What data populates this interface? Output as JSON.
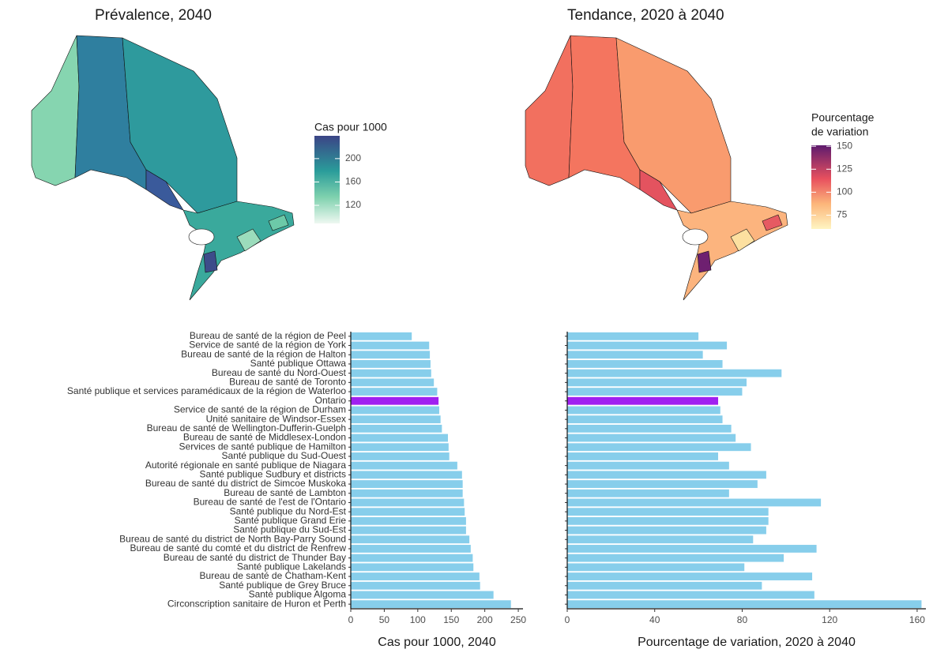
{
  "chart_data": [
    {
      "type": "map",
      "title": "Prévalence, 2040",
      "legend": {
        "title_lines": [
          "Cas pour 1000"
        ],
        "lim": [
          89,
          239
        ],
        "ticks": [
          120,
          160,
          200
        ]
      }
    },
    {
      "type": "map",
      "title": "Tendance, 2020 à 2040",
      "legend": {
        "title_lines": [
          "Pourcentage",
          "de variation"
        ],
        "lim": [
          60,
          151
        ],
        "ticks": [
          75,
          100,
          125,
          150
        ]
      }
    },
    {
      "type": "hbar",
      "xlabel": "Cas pour 1000, 2040",
      "categories": [
        "Bureau de santé de la région de Peel",
        "Service de santé de la région de York",
        "Bureau de santé de la région de Halton",
        "Santé publique Ottawa",
        "Bureau de santé du Nord-Ouest",
        "Bureau de santé de Toronto",
        "Santé publique et services paramédicaux de la région de Waterloo",
        "Ontario",
        "Service de santé de la région de Durham",
        "Unité sanitaire de Windsor-Essex",
        "Bureau de santé de Wellington-Dufferin-Guelph",
        "Bureau de santé de Middlesex-London",
        "Services de santé publique de Hamilton",
        "Santé publique du Sud-Ouest",
        "Autorité régionale en santé publique de Niagara",
        "Santé publique Sudbury et districts",
        "Bureau de santé du district de Simcoe Muskoka",
        "Bureau de santé de Lambton",
        "Bureau de santé de l'est de l'Ontario",
        "Santé publique du Nord-Est",
        "Santé publique Grand Erie",
        "Santé publique du Sud-Est",
        "Bureau de santé du district de North Bay-Parry Sound",
        "Bureau de santé du comté et du district de Renfrew",
        "Bureau de santé du district de Thunder Bay",
        "Santé publique Lakelands",
        "Bureau de santé de Chatham-Kent",
        "Santé publique de Grey Bruce",
        "Santé publique Algoma",
        "Circonscription sanitaire de Huron et Perth"
      ],
      "values": [
        91,
        117,
        118,
        119,
        120,
        124,
        129,
        131,
        132,
        134,
        136,
        145,
        146,
        147,
        159,
        166,
        167,
        167,
        169,
        170,
        172,
        172,
        177,
        179,
        182,
        183,
        192,
        193,
        213,
        239
      ],
      "colors": [
        "#87ceeb",
        "#87ceeb",
        "#87ceeb",
        "#87ceeb",
        "#87ceeb",
        "#87ceeb",
        "#87ceeb",
        "#a020f0",
        "#87ceeb",
        "#87ceeb",
        "#87ceeb",
        "#87ceeb",
        "#87ceeb",
        "#87ceeb",
        "#87ceeb",
        "#87ceeb",
        "#87ceeb",
        "#87ceeb",
        "#87ceeb",
        "#87ceeb",
        "#87ceeb",
        "#87ceeb",
        "#87ceeb",
        "#87ceeb",
        "#87ceeb",
        "#87ceeb",
        "#87ceeb",
        "#87ceeb",
        "#87ceeb",
        "#87ceeb"
      ],
      "xlim": [
        0,
        257
      ],
      "xticks": [
        0,
        50,
        100,
        150,
        200,
        250
      ]
    },
    {
      "type": "hbar",
      "xlabel": "Pourcentage de variation, 2020 à 2040",
      "values": [
        60,
        73,
        62,
        71,
        98,
        82,
        80,
        69,
        70,
        71,
        75,
        77,
        84,
        69,
        74,
        91,
        87,
        74,
        116,
        92,
        92,
        91,
        85,
        114,
        99,
        81,
        112,
        89,
        113,
        162
      ],
      "colors": [
        "#87ceeb",
        "#87ceeb",
        "#87ceeb",
        "#87ceeb",
        "#87ceeb",
        "#87ceeb",
        "#87ceeb",
        "#a020f0",
        "#87ceeb",
        "#87ceeb",
        "#87ceeb",
        "#87ceeb",
        "#87ceeb",
        "#87ceeb",
        "#87ceeb",
        "#87ceeb",
        "#87ceeb",
        "#87ceeb",
        "#87ceeb",
        "#87ceeb",
        "#87ceeb",
        "#87ceeb",
        "#87ceeb",
        "#87ceeb",
        "#87ceeb",
        "#87ceeb",
        "#87ceeb",
        "#87ceeb",
        "#87ceeb",
        "#87ceeb"
      ],
      "xlim": [
        0,
        164
      ],
      "xticks": [
        0,
        40,
        80,
        120,
        160
      ]
    }
  ]
}
